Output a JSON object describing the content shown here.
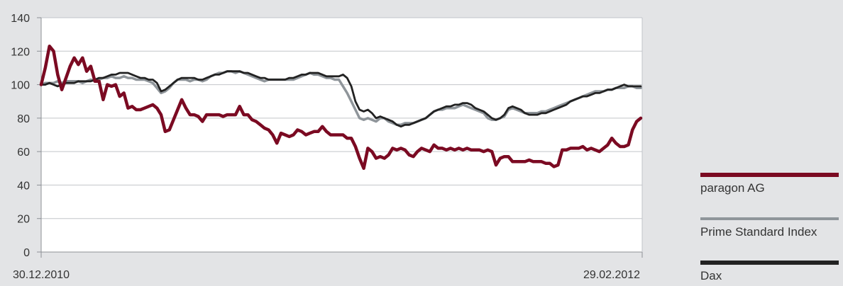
{
  "chart_data": {
    "type": "line",
    "title": "",
    "xlabel": "",
    "ylabel": "",
    "x_start_label": "30.12.2010",
    "x_end_label": "29.02.2012",
    "ylim": [
      0,
      140
    ],
    "yticks": [
      0,
      20,
      40,
      60,
      80,
      100,
      120,
      140
    ],
    "grid": true,
    "legend_position": "right",
    "series": [
      {
        "name": "paragon AG",
        "color": "#7b0a22",
        "values": [
          100,
          110,
          123,
          120,
          106,
          97,
          104,
          111,
          116,
          112,
          116,
          108,
          111,
          102,
          102,
          91,
          100,
          99,
          100,
          93,
          95,
          86,
          87,
          85,
          85,
          86,
          87,
          88,
          86,
          82,
          72,
          73,
          79,
          85,
          91,
          86,
          82,
          82,
          81,
          78,
          82,
          82,
          82,
          82,
          81,
          82,
          82,
          82,
          87,
          82,
          82,
          79,
          78,
          76,
          74,
          73,
          70,
          65,
          71,
          70,
          69,
          70,
          73,
          72,
          70,
          71,
          72,
          72,
          75,
          72,
          70,
          70,
          70,
          70,
          68,
          68,
          63,
          56,
          50,
          62,
          60,
          56,
          57,
          56,
          58,
          62,
          61,
          62,
          61,
          58,
          57,
          60,
          62,
          61,
          60,
          64,
          62,
          62,
          61,
          62,
          61,
          62,
          61,
          62,
          61,
          61,
          61,
          60,
          61,
          60,
          52,
          56,
          57,
          57,
          54,
          54,
          54,
          54,
          55,
          54,
          54,
          54,
          53,
          53,
          51,
          52,
          61,
          61,
          62,
          62,
          62,
          63,
          61,
          62,
          61,
          60,
          62,
          64,
          68,
          65,
          63,
          63,
          64,
          73,
          78,
          80
        ]
      },
      {
        "name": "Prime Standard Index",
        "color": "#8f959a",
        "values": [
          100,
          101,
          101,
          101,
          102,
          101,
          102,
          102,
          102,
          102,
          101,
          102,
          103,
          102,
          103,
          104,
          104,
          105,
          104,
          104,
          105,
          104,
          104,
          103,
          103,
          103,
          102,
          101,
          98,
          95,
          96,
          98,
          101,
          103,
          103,
          103,
          102,
          103,
          103,
          102,
          103,
          105,
          106,
          107,
          107,
          108,
          108,
          107,
          108,
          107,
          106,
          105,
          104,
          103,
          102,
          103,
          103,
          103,
          103,
          103,
          103,
          103,
          104,
          105,
          106,
          107,
          106,
          106,
          105,
          104,
          104,
          103,
          103,
          99,
          95,
          90,
          85,
          80,
          79,
          80,
          79,
          78,
          80,
          80,
          78,
          77,
          76,
          76,
          77,
          77,
          77,
          78,
          79,
          80,
          82,
          84,
          85,
          85,
          86,
          86,
          86,
          87,
          88,
          87,
          86,
          85,
          84,
          83,
          80,
          79,
          79,
          80,
          81,
          85,
          86,
          85,
          84,
          83,
          83,
          83,
          83,
          84,
          84,
          85,
          86,
          87,
          88,
          89,
          90,
          91,
          92,
          93,
          94,
          95,
          96,
          96,
          96,
          97,
          97,
          98,
          98,
          98,
          99,
          99,
          98,
          98
        ]
      },
      {
        "name": "Dax",
        "color": "#222222",
        "values": [
          100,
          100,
          101,
          100,
          99,
          100,
          101,
          101,
          101,
          102,
          102,
          102,
          102,
          103,
          104,
          104,
          105,
          106,
          106,
          107,
          107,
          107,
          106,
          105,
          104,
          104,
          103,
          103,
          101,
          96,
          97,
          99,
          101,
          103,
          104,
          104,
          104,
          104,
          103,
          103,
          104,
          105,
          106,
          106,
          107,
          108,
          108,
          108,
          108,
          107,
          107,
          106,
          105,
          104,
          104,
          103,
          103,
          103,
          103,
          103,
          104,
          104,
          105,
          106,
          106,
          107,
          107,
          107,
          106,
          105,
          105,
          105,
          105,
          106,
          104,
          99,
          90,
          85,
          84,
          85,
          83,
          80,
          81,
          80,
          79,
          78,
          76,
          75,
          76,
          76,
          77,
          78,
          79,
          80,
          82,
          84,
          85,
          86,
          87,
          87,
          88,
          88,
          89,
          89,
          88,
          86,
          85,
          84,
          82,
          80,
          79,
          80,
          82,
          86,
          87,
          86,
          85,
          83,
          82,
          82,
          82,
          83,
          83,
          84,
          85,
          86,
          87,
          88,
          90,
          91,
          92,
          93,
          93,
          94,
          95,
          95,
          96,
          97,
          97,
          98,
          99,
          100,
          99,
          99,
          99,
          99
        ]
      }
    ]
  }
}
